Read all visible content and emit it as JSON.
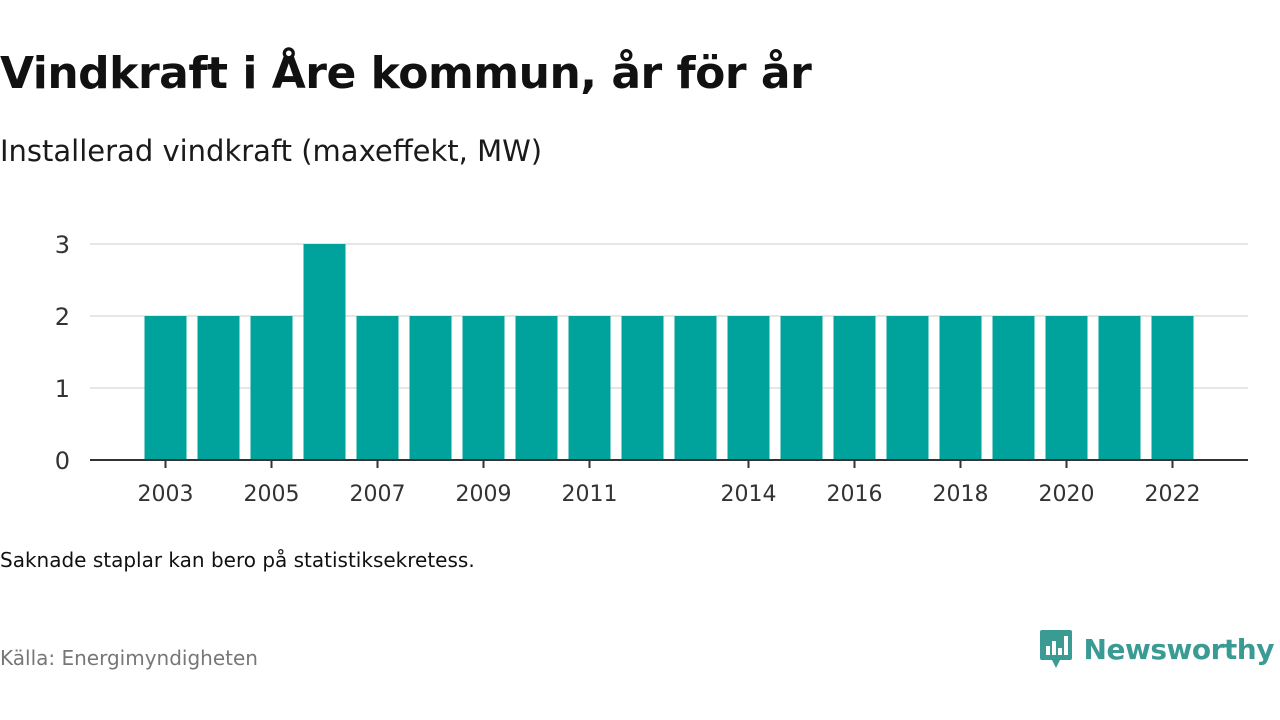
{
  "title": "Vindkraft i Åre kommun, år för år",
  "subtitle": "Installerad vindkraft (maxeffekt, MW)",
  "note": "Saknade staplar kan bero på statistiksekretess.",
  "source": "Källa: Energimyndigheten",
  "brand": {
    "name": "Newsworthy",
    "icon": "newsworthy-logo-icon",
    "color": "#3a9a94"
  },
  "colors": {
    "bar": "#00a39b",
    "grid": "#dddddd",
    "axis": "#333333"
  },
  "chart_data": {
    "type": "bar",
    "title": "Vindkraft i Åre kommun, år för år",
    "subtitle": "Installerad vindkraft (maxeffekt, MW)",
    "xlabel": "",
    "ylabel": "",
    "ylim": [
      0,
      3
    ],
    "yticks": [
      "0",
      "1",
      "2",
      "3"
    ],
    "grid": true,
    "categories": [
      "2003",
      "2004",
      "2005",
      "2006",
      "2007",
      "2008",
      "2009",
      "2010",
      "2011",
      "2012",
      "2013",
      "2014",
      "2015",
      "2016",
      "2017",
      "2018",
      "2019",
      "2020",
      "2021",
      "2022"
    ],
    "values": [
      2,
      2,
      2,
      3,
      2,
      2,
      2,
      2,
      2,
      2,
      2,
      2,
      2,
      2,
      2,
      2,
      2,
      2,
      2,
      2
    ],
    "xtick_labels": [
      "2003",
      "2005",
      "2007",
      "2009",
      "2011",
      "2014",
      "2016",
      "2018",
      "2020",
      "2022"
    ]
  }
}
